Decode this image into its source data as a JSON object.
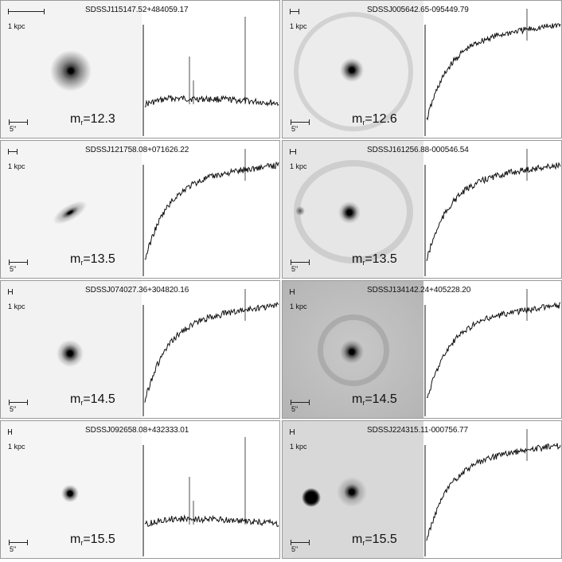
{
  "panels": [
    {
      "id": "SDSSJ115147.52+484059.17",
      "scale_label": "1 kpc",
      "arcsec_label": "5\"",
      "mag_prefix": "m",
      "mag_sub": "r",
      "mag_value": "=12.3",
      "image_bg": "#f3f3f3"
    },
    {
      "id": "SDSSJ005642.65-095449.79",
      "scale_label": "1 kpc",
      "arcsec_label": "5\"",
      "mag_prefix": "m",
      "mag_sub": "r",
      "mag_value": "=12.6",
      "image_bg": "#ececec"
    },
    {
      "id": "SDSSJ121758.08+071626.22",
      "scale_label": "1 kpc",
      "arcsec_label": "5\"",
      "mag_prefix": "m",
      "mag_sub": "r",
      "mag_value": "=13.5",
      "image_bg": "#f4f4f4"
    },
    {
      "id": "SDSSJ161256.88-000546.54",
      "scale_label": "1 kpc",
      "arcsec_label": "5\"",
      "mag_prefix": "m",
      "mag_sub": "r",
      "mag_value": "=13.5",
      "image_bg": "#e6e6e6"
    },
    {
      "id": "SDSSJ074027.36+304820.16",
      "scale_label": "1 kpc",
      "arcsec_label": "5\"",
      "mag_prefix": "m",
      "mag_sub": "r",
      "mag_value": "=14.5",
      "image_bg": "#f2f2f2"
    },
    {
      "id": "SDSSJ134142.24+405228.20",
      "scale_label": "1 kpc",
      "arcsec_label": "5\"",
      "mag_prefix": "m",
      "mag_sub": "r",
      "mag_value": "=14.5",
      "image_bg": "#bdbdbd"
    },
    {
      "id": "SDSSJ092658.08+432333.01",
      "scale_label": "1 kpc",
      "arcsec_label": "5\"",
      "mag_prefix": "m",
      "mag_sub": "r",
      "mag_value": "=15.5",
      "image_bg": "#f5f5f5"
    },
    {
      "id": "SDSSJ224315.11-000756.77",
      "scale_label": "1 kpc",
      "arcsec_label": "5\"",
      "mag_prefix": "m",
      "mag_sub": "r",
      "mag_value": "=15.5",
      "image_bg": "#d8d8d8"
    }
  ]
}
